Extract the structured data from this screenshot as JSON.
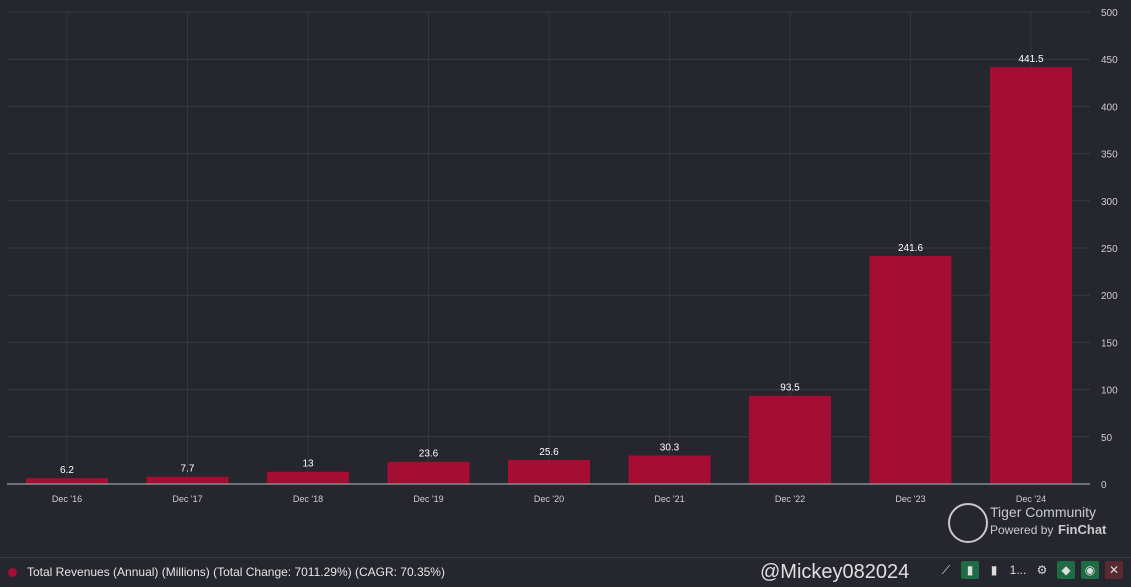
{
  "chart_data": {
    "type": "bar",
    "title": "",
    "xlabel": "",
    "ylabel": "",
    "categories": [
      "Dec '16",
      "Dec '17",
      "Dec '18",
      "Dec '19",
      "Dec '20",
      "Dec '21",
      "Dec '22",
      "Dec '23",
      "Dec '24"
    ],
    "values": [
      6.2,
      7.7,
      13,
      23.6,
      25.6,
      30.3,
      93.5,
      241.6,
      441.5
    ],
    "data_labels": [
      "6.2",
      "7.7",
      "13",
      "23.6",
      "25.6",
      "30.3",
      "93.5",
      "241.6",
      "441.5"
    ],
    "ylim": [
      0,
      500
    ],
    "yticks": [
      0,
      50,
      100,
      150,
      200,
      250,
      300,
      350,
      400,
      450,
      500
    ],
    "y_axis_side": "right",
    "grid": true,
    "bar_color": "#a50d33",
    "legend_position": "bottom-left"
  },
  "legend": {
    "label": "Total Revenues (Annual) (Millions) (Total Change: 7011.29%) (CAGR: 70.35%)"
  },
  "watermark": {
    "brand": "Tiger Community",
    "powered_by": "Powered by",
    "finchat": "FinChat",
    "user": "@Mickey082024"
  },
  "toolbar": {
    "trend": "⟋",
    "chart": "▮",
    "bars": "▮",
    "more": "1...",
    "settings": "⚙",
    "tag": "◆",
    "eye": "◉",
    "close": "✕"
  }
}
